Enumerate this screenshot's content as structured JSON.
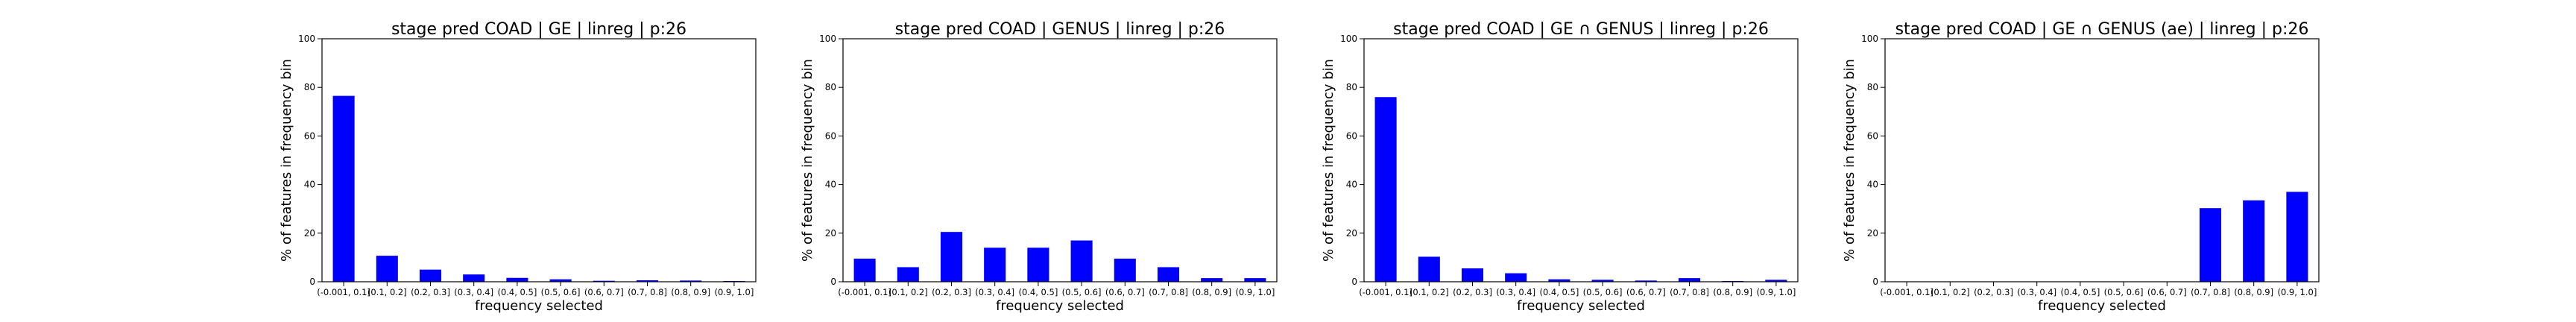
{
  "figure": {
    "background": "#ffffff",
    "bar_color": "#0000ff"
  },
  "chart_data": [
    {
      "type": "bar",
      "title": "stage pred COAD | GE | linreg | p:26",
      "xlabel": "frequency selected",
      "ylabel": "% of features in frequency bin",
      "categories": [
        "(-0.001, 0.1]",
        "(0.1, 0.2]",
        "(0.2, 0.3]",
        "(0.3, 0.4]",
        "(0.4, 0.5]",
        "(0.5, 0.6]",
        "(0.6, 0.7]",
        "(0.7, 0.8]",
        "(0.8, 0.9]",
        "(0.9, 1.0]"
      ],
      "values": [
        76.5,
        10.7,
        5.0,
        3.0,
        1.6,
        1.0,
        0.4,
        0.6,
        0.5,
        0.3
      ],
      "ylim": [
        0,
        100
      ],
      "yticks": [
        0,
        20,
        40,
        60,
        80,
        100
      ],
      "grid": false,
      "legend": "none"
    },
    {
      "type": "bar",
      "title": "stage pred COAD | GENUS | linreg | p:26",
      "xlabel": "frequency selected",
      "ylabel": "% of features in frequency bin",
      "categories": [
        "(-0.001, 0.1]",
        "(0.1, 0.2]",
        "(0.2, 0.3]",
        "(0.3, 0.4]",
        "(0.4, 0.5]",
        "(0.5, 0.6]",
        "(0.6, 0.7]",
        "(0.7, 0.8]",
        "(0.8, 0.9]",
        "(0.9, 1.0]"
      ],
      "values": [
        9.5,
        6.0,
        20.5,
        14.0,
        14.0,
        17.0,
        9.5,
        6.0,
        1.5,
        1.5
      ],
      "ylim": [
        0,
        100
      ],
      "yticks": [
        0,
        20,
        40,
        60,
        80,
        100
      ],
      "grid": false,
      "legend": "none"
    },
    {
      "type": "bar",
      "title": "stage pred COAD | GE ∩ GENUS | linreg | p:26",
      "xlabel": "frequency selected",
      "ylabel": "% of features in frequency bin",
      "categories": [
        "(-0.001, 0.1]",
        "(0.1, 0.2]",
        "(0.2, 0.3]",
        "(0.3, 0.4]",
        "(0.4, 0.5]",
        "(0.5, 0.6]",
        "(0.6, 0.7]",
        "(0.7, 0.8]",
        "(0.8, 0.9]",
        "(0.9, 1.0]"
      ],
      "values": [
        76.0,
        10.3,
        5.5,
        3.5,
        1.0,
        0.8,
        0.5,
        1.5,
        0.3,
        0.8
      ],
      "ylim": [
        0,
        100
      ],
      "yticks": [
        0,
        20,
        40,
        60,
        80,
        100
      ],
      "grid": false,
      "legend": "none"
    },
    {
      "type": "bar",
      "title": "stage pred COAD | GE ∩ GENUS (ae) | linreg | p:26",
      "xlabel": "frequency selected",
      "ylabel": "% of features in frequency bin",
      "categories": [
        "(-0.001, 0.1]",
        "(0.1, 0.2]",
        "(0.2, 0.3]",
        "(0.3, 0.4]",
        "(0.4, 0.5]",
        "(0.5, 0.6]",
        "(0.6, 0.7]",
        "(0.7, 0.8]",
        "(0.8, 0.9]",
        "(0.9, 1.0]"
      ],
      "values": [
        0,
        0,
        0,
        0,
        0,
        0,
        0,
        30.3,
        33.5,
        37.0
      ],
      "ylim": [
        0,
        100
      ],
      "yticks": [
        0,
        20,
        40,
        60,
        80,
        100
      ],
      "grid": false,
      "legend": "none"
    }
  ]
}
